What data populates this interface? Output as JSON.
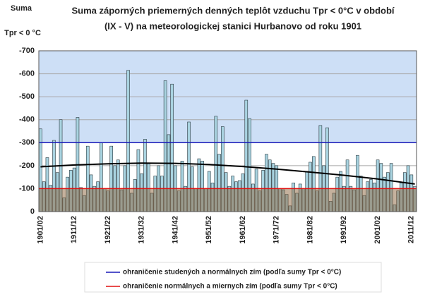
{
  "chart_data": {
    "type": "bar",
    "title": [
      "Suma záporných priemerných denných teplôt vzduchu Tpr < 0°C v období",
      "(IX - V) na meteorologickej stanici Hurbanovo od roku 1901"
    ],
    "ylabel": [
      "Suma",
      "Tpr < 0 °C"
    ],
    "categories": [
      "1901/02",
      null,
      null,
      null,
      null,
      null,
      null,
      null,
      null,
      null,
      "1911/12",
      null,
      null,
      null,
      null,
      null,
      null,
      null,
      null,
      null,
      "1921/22",
      null,
      null,
      null,
      null,
      null,
      null,
      null,
      null,
      null,
      "1931/32",
      null,
      null,
      null,
      null,
      null,
      null,
      null,
      null,
      null,
      "1941/42",
      null,
      null,
      null,
      null,
      null,
      null,
      null,
      null,
      null,
      "1951/52",
      null,
      null,
      null,
      null,
      null,
      null,
      null,
      null,
      null,
      "1961/62",
      null,
      null,
      null,
      null,
      null,
      null,
      null,
      null,
      null,
      "1971/72",
      null,
      null,
      null,
      null,
      null,
      null,
      null,
      null,
      null,
      "1981/82",
      null,
      null,
      null,
      null,
      null,
      null,
      null,
      null,
      null,
      "1991/92",
      null,
      null,
      null,
      null,
      null,
      null,
      null,
      null,
      null,
      "2001/02",
      null,
      null,
      null,
      null,
      null,
      null,
      null,
      null,
      null,
      "2011/12",
      null
    ],
    "values": [
      -360,
      -130,
      -235,
      -115,
      -310,
      -170,
      -400,
      -60,
      -150,
      -180,
      -190,
      -410,
      -105,
      -70,
      -285,
      -160,
      -110,
      -130,
      -300,
      -100,
      -90,
      -285,
      -200,
      -225,
      -95,
      -200,
      -615,
      -80,
      -140,
      -270,
      -165,
      -315,
      -210,
      -80,
      -155,
      -200,
      -155,
      -570,
      -335,
      -555,
      -200,
      -90,
      -220,
      -110,
      -390,
      -195,
      -100,
      -230,
      -220,
      -100,
      -175,
      -125,
      -415,
      -250,
      -370,
      -170,
      -110,
      -155,
      -130,
      -135,
      -165,
      -485,
      -405,
      -120,
      -185,
      -90,
      -180,
      -250,
      -225,
      -210,
      -200,
      -100,
      -95,
      -75,
      -25,
      -125,
      -80,
      -120,
      -100,
      -175,
      -215,
      -240,
      -90,
      -375,
      -200,
      -365,
      -45,
      -80,
      -150,
      -175,
      -110,
      -225,
      -110,
      -95,
      -245,
      -155,
      -70,
      -130,
      -140,
      -125,
      -225,
      -210,
      -150,
      -170,
      -210,
      -30,
      -90,
      -125,
      -170,
      -200,
      -160,
      -110
    ],
    "color": "#a9d3e0",
    "ylim": [
      0,
      -700
    ],
    "yticks": [
      0,
      -100,
      -200,
      -300,
      -400,
      -500,
      -600,
      -700
    ],
    "grid": true,
    "trend": {
      "x": [
        1901,
        1911,
        1921,
        1931,
        1941,
        1951,
        1961,
        1971,
        1981,
        1991,
        2001,
        2012
      ],
      "values": [
        -195,
        -203,
        -208,
        -211,
        -210,
        -205,
        -196,
        -185,
        -172,
        -158,
        -142,
        -120
      ],
      "color": "#000000"
    },
    "reference_lines": [
      {
        "value": -300,
        "color": "#1a1ab8",
        "label": "ohraničenie studených a normálnych zím (podľa sumy Tpr < 0°C)"
      },
      {
        "value": -100,
        "color": "#e01010",
        "label": "ohraničenie normálnych a miernych zím (podľa sumy Tpr < 0°C)"
      }
    ]
  }
}
